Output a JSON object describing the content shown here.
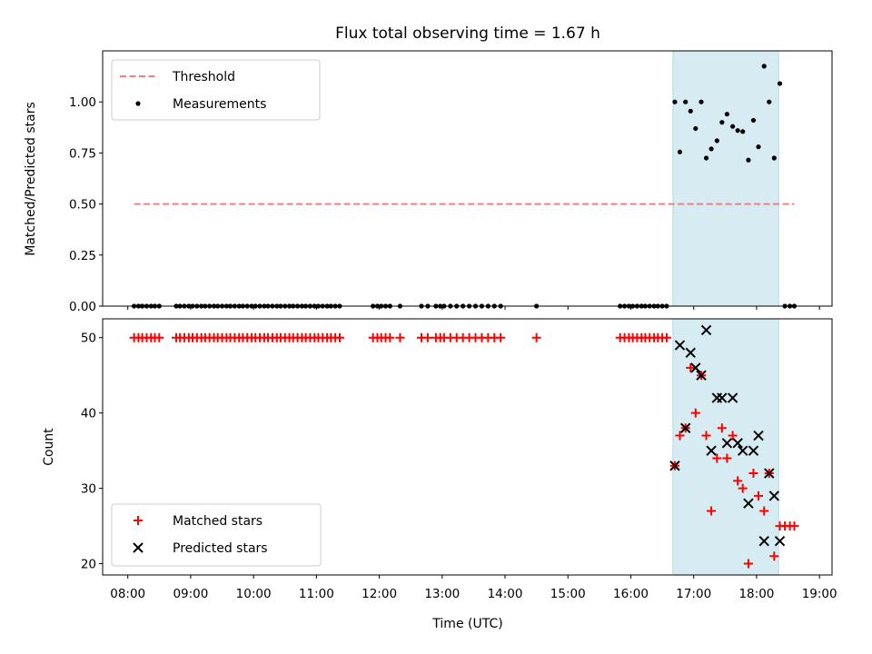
{
  "chart_data": [
    {
      "type": "scatter",
      "title": "Flux total observing time = 1.67 h",
      "xlabel": "",
      "ylabel": "Matched/Predicted stars",
      "xlim": [
        7.6,
        19.2
      ],
      "ylim": [
        0.0,
        1.25
      ],
      "y_ticks": [
        "0.00",
        "0.25",
        "0.50",
        "0.75",
        "1.00"
      ],
      "shaded_x_range": [
        16.67,
        18.35
      ],
      "legend": {
        "position": "upper-left",
        "entries": [
          "Threshold",
          "Measurements"
        ]
      },
      "threshold": {
        "name": "Threshold",
        "x": [
          8.1,
          18.6
        ],
        "y": 0.5,
        "color": "#f08080",
        "style": "dashed"
      },
      "series": [
        {
          "name": "Measurements",
          "color": "#000000",
          "marker": "dot",
          "x": [
            8.1,
            8.17,
            8.23,
            8.3,
            8.37,
            8.43,
            8.5,
            8.77,
            8.83,
            8.9,
            8.97,
            9.03,
            9.1,
            9.17,
            9.23,
            9.3,
            9.37,
            9.43,
            9.5,
            9.57,
            9.63,
            9.7,
            9.77,
            9.83,
            9.9,
            9.97,
            10.03,
            10.1,
            10.17,
            10.23,
            10.3,
            10.37,
            10.43,
            10.5,
            10.57,
            10.63,
            10.7,
            10.77,
            10.83,
            10.9,
            10.97,
            11.03,
            11.1,
            11.17,
            11.23,
            11.3,
            11.37,
            11.9,
            11.97,
            12.03,
            12.1,
            12.17,
            12.33,
            12.67,
            12.77,
            12.9,
            12.97,
            13.03,
            13.13,
            13.23,
            13.33,
            13.43,
            13.53,
            13.63,
            13.73,
            13.83,
            13.93,
            14.5,
            15.83,
            15.9,
            15.97,
            16.03,
            16.1,
            16.17,
            16.23,
            16.3,
            16.37,
            16.43,
            16.5,
            16.57,
            16.7,
            16.78,
            16.87,
            16.95,
            17.03,
            17.12,
            17.2,
            17.28,
            17.37,
            17.45,
            17.53,
            17.62,
            17.7,
            17.78,
            17.87,
            17.95,
            18.03,
            18.12,
            18.2,
            18.28,
            18.37,
            18.45,
            18.53,
            18.6
          ],
          "y": [
            0,
            0,
            0,
            0,
            0,
            0,
            0,
            0,
            0,
            0,
            0,
            0,
            0,
            0,
            0,
            0,
            0,
            0,
            0,
            0,
            0,
            0,
            0,
            0,
            0,
            0,
            0,
            0,
            0,
            0,
            0,
            0,
            0,
            0,
            0,
            0,
            0,
            0,
            0,
            0,
            0,
            0,
            0,
            0,
            0,
            0,
            0,
            0,
            0,
            0,
            0,
            0,
            0,
            0,
            0,
            0,
            0,
            0,
            0,
            0,
            0,
            0,
            0,
            0,
            0,
            0,
            0,
            0,
            0,
            0,
            0,
            0,
            0,
            0,
            0,
            0,
            0,
            0,
            0,
            0,
            1.0,
            0.755,
            1.0,
            0.955,
            0.87,
            1.0,
            0.725,
            0.77,
            0.81,
            0.9,
            0.94,
            0.88,
            0.86,
            0.855,
            0.715,
            0.91,
            0.78,
            1.175,
            1.0,
            0.725,
            1.09,
            0,
            0,
            0
          ]
        }
      ]
    },
    {
      "type": "scatter",
      "title": "",
      "xlabel": "Time (UTC)",
      "ylabel": "Count",
      "xlim": [
        7.6,
        19.2
      ],
      "ylim": [
        18.5,
        52.5
      ],
      "x_ticks": [
        "08:00",
        "09:00",
        "10:00",
        "11:00",
        "12:00",
        "13:00",
        "14:00",
        "15:00",
        "16:00",
        "17:00",
        "18:00",
        "19:00"
      ],
      "y_ticks": [
        "20",
        "30",
        "40",
        "50"
      ],
      "shaded_x_range": [
        16.67,
        18.35
      ],
      "legend": {
        "position": "lower-left",
        "entries": [
          "Matched stars",
          "Predicted stars"
        ]
      },
      "series": [
        {
          "name": "Matched stars",
          "color": "#ff0000",
          "marker": "plus",
          "x": [
            8.1,
            8.17,
            8.23,
            8.3,
            8.37,
            8.43,
            8.5,
            8.77,
            8.83,
            8.9,
            8.97,
            9.03,
            9.1,
            9.17,
            9.23,
            9.3,
            9.37,
            9.43,
            9.5,
            9.57,
            9.63,
            9.7,
            9.77,
            9.83,
            9.9,
            9.97,
            10.03,
            10.1,
            10.17,
            10.23,
            10.3,
            10.37,
            10.43,
            10.5,
            10.57,
            10.63,
            10.7,
            10.77,
            10.83,
            10.9,
            10.97,
            11.03,
            11.1,
            11.17,
            11.23,
            11.3,
            11.37,
            11.9,
            11.97,
            12.03,
            12.1,
            12.17,
            12.33,
            12.67,
            12.77,
            12.9,
            12.97,
            13.03,
            13.13,
            13.23,
            13.33,
            13.43,
            13.53,
            13.63,
            13.73,
            13.83,
            13.93,
            14.5,
            15.83,
            15.9,
            15.97,
            16.03,
            16.1,
            16.17,
            16.23,
            16.3,
            16.37,
            16.43,
            16.5,
            16.57,
            16.7,
            16.78,
            16.87,
            16.95,
            17.03,
            17.12,
            17.2,
            17.28,
            17.37,
            17.45,
            17.53,
            17.62,
            17.7,
            17.78,
            17.87,
            17.95,
            18.03,
            18.12,
            18.2,
            18.28,
            18.37,
            18.45,
            18.53,
            18.6
          ],
          "y": [
            50,
            50,
            50,
            50,
            50,
            50,
            50,
            50,
            50,
            50,
            50,
            50,
            50,
            50,
            50,
            50,
            50,
            50,
            50,
            50,
            50,
            50,
            50,
            50,
            50,
            50,
            50,
            50,
            50,
            50,
            50,
            50,
            50,
            50,
            50,
            50,
            50,
            50,
            50,
            50,
            50,
            50,
            50,
            50,
            50,
            50,
            50,
            50,
            50,
            50,
            50,
            50,
            50,
            50,
            50,
            50,
            50,
            50,
            50,
            50,
            50,
            50,
            50,
            50,
            50,
            50,
            50,
            50,
            50,
            50,
            50,
            50,
            50,
            50,
            50,
            50,
            50,
            50,
            50,
            50,
            33,
            37,
            38,
            46,
            40,
            45,
            37,
            27,
            34,
            38,
            34,
            37,
            31,
            30,
            20,
            32,
            29,
            27,
            32,
            21,
            25,
            25,
            25,
            25
          ]
        },
        {
          "name": "Predicted stars",
          "color": "#000000",
          "marker": "x",
          "x": [
            16.7,
            16.78,
            16.87,
            16.95,
            17.03,
            17.12,
            17.2,
            17.28,
            17.37,
            17.45,
            17.53,
            17.62,
            17.7,
            17.78,
            17.87,
            17.95,
            18.03,
            18.12,
            18.2,
            18.28,
            18.37
          ],
          "y": [
            33,
            49,
            38,
            48,
            46,
            45,
            51,
            35,
            42,
            42,
            36,
            42,
            36,
            35,
            28,
            35,
            37,
            23,
            32,
            29,
            23
          ]
        }
      ]
    }
  ]
}
